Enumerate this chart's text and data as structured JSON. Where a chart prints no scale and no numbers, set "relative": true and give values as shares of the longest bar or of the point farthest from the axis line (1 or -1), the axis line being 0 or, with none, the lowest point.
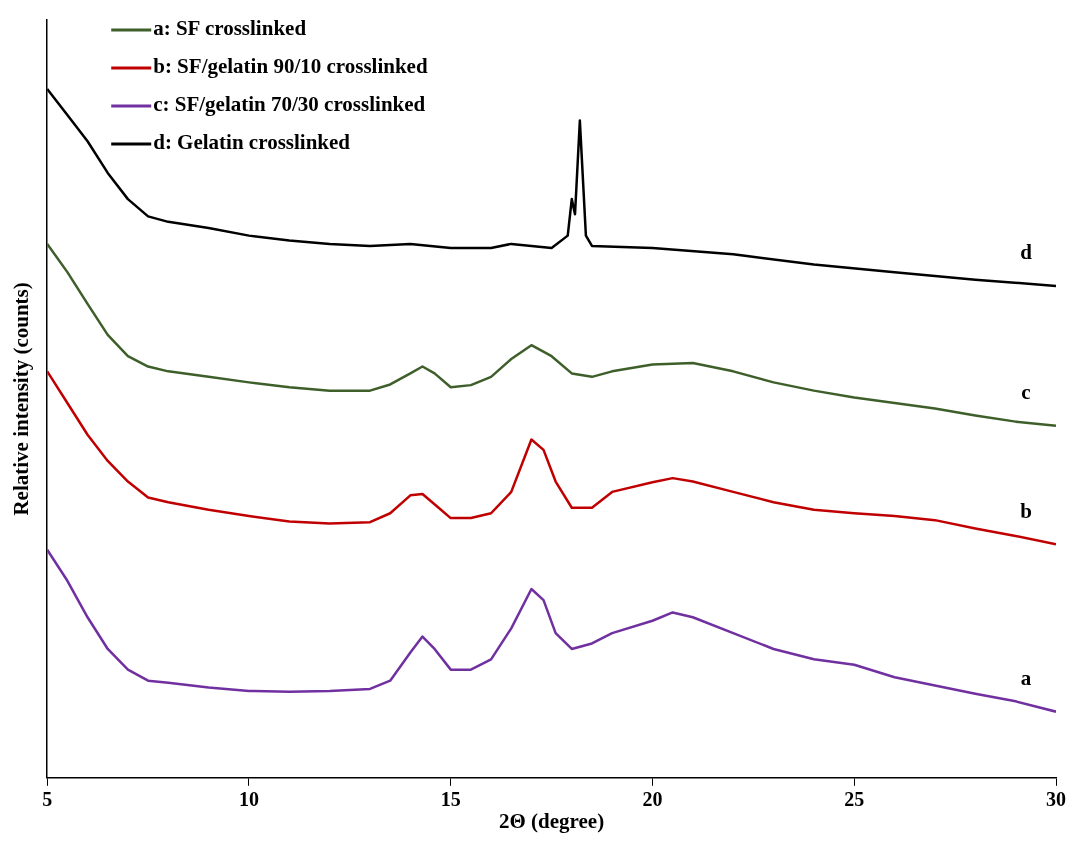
{
  "chart_data": {
    "type": "line",
    "relative": true,
    "xlabel": "2Θ (degree)",
    "ylabel": "Relative intensity (counts)",
    "xlim": [
      5,
      30
    ],
    "xticks": [
      5,
      10,
      15,
      20,
      25,
      30
    ],
    "grid": false,
    "legend": "top left",
    "marker": "none",
    "line_style": "solid",
    "series": [
      {
        "name": "a: SF crosslinked",
        "color": "#3e5f2a",
        "x": [
          5,
          5.5,
          6,
          6.5,
          7,
          7.5,
          8,
          9,
          10,
          11,
          12,
          13,
          13.5,
          14,
          14.3,
          14.6,
          15,
          15.5,
          16,
          16.5,
          17,
          17.5,
          18,
          18.5,
          19,
          20,
          21,
          22,
          23,
          24,
          25,
          26,
          27,
          28,
          29,
          30
        ],
        "values": [
          0.775,
          0.734,
          0.688,
          0.643,
          0.612,
          0.597,
          0.59,
          0.582,
          0.574,
          0.567,
          0.562,
          0.562,
          0.571,
          0.587,
          0.597,
          0.587,
          0.567,
          0.57,
          0.582,
          0.608,
          0.628,
          0.612,
          0.587,
          0.582,
          0.59,
          0.6,
          0.602,
          0.59,
          0.574,
          0.562,
          0.552,
          0.544,
          0.536,
          0.526,
          0.517,
          0.511
        ]
      },
      {
        "name": "b: SF/gelatin 90/10 crosslinked",
        "color": "#c00000",
        "x": [
          5,
          5.5,
          6,
          6.5,
          7,
          7.5,
          8,
          9,
          10,
          11,
          12,
          13,
          13.5,
          14,
          14.3,
          14.7,
          15,
          15.5,
          16,
          16.5,
          17,
          17.3,
          17.6,
          18,
          18.5,
          19,
          20,
          20.5,
          21,
          22,
          23,
          24,
          25,
          26,
          27,
          28,
          29,
          30
        ],
        "values": [
          0.59,
          0.544,
          0.498,
          0.46,
          0.43,
          0.407,
          0.4,
          0.389,
          0.38,
          0.372,
          0.369,
          0.371,
          0.384,
          0.41,
          0.412,
          0.392,
          0.377,
          0.377,
          0.384,
          0.415,
          0.491,
          0.476,
          0.43,
          0.392,
          0.392,
          0.415,
          0.429,
          0.435,
          0.43,
          0.415,
          0.4,
          0.389,
          0.384,
          0.38,
          0.374,
          0.362,
          0.351,
          0.339
        ]
      },
      {
        "name": "c: SF/gelatin 70/30 crosslinked",
        "color": "#7030a0",
        "x": [
          5,
          5.5,
          6,
          6.5,
          7,
          7.5,
          8,
          9,
          10,
          11,
          12,
          13,
          13.5,
          14,
          14.3,
          14.6,
          15,
          15.5,
          16,
          16.5,
          17,
          17.3,
          17.6,
          18,
          18.5,
          19,
          20,
          20.5,
          21,
          22,
          23,
          24,
          25,
          26,
          27,
          28,
          29,
          30
        ],
        "values": [
          0.331,
          0.286,
          0.233,
          0.187,
          0.157,
          0.141,
          0.138,
          0.131,
          0.126,
          0.125,
          0.126,
          0.129,
          0.141,
          0.182,
          0.205,
          0.187,
          0.157,
          0.157,
          0.172,
          0.217,
          0.274,
          0.258,
          0.21,
          0.187,
          0.195,
          0.21,
          0.228,
          0.24,
          0.233,
          0.21,
          0.187,
          0.172,
          0.164,
          0.146,
          0.134,
          0.122,
          0.111,
          0.096
        ]
      },
      {
        "name": "d: Gelatin crosslinked",
        "color": "#000000",
        "x": [
          5,
          5.5,
          6,
          6.5,
          7,
          7.5,
          8,
          9,
          10,
          11,
          12,
          13,
          14,
          15,
          16,
          16.5,
          17,
          17.5,
          17.9,
          18,
          18.08,
          18.2,
          18.35,
          18.5,
          20,
          22,
          24,
          26,
          28,
          30
        ],
        "values": [
          1.0,
          0.962,
          0.924,
          0.878,
          0.84,
          0.815,
          0.807,
          0.798,
          0.787,
          0.78,
          0.775,
          0.772,
          0.775,
          0.769,
          0.769,
          0.775,
          0.772,
          0.769,
          0.787,
          0.84,
          0.818,
          0.954,
          0.787,
          0.772,
          0.769,
          0.76,
          0.745,
          0.734,
          0.723,
          0.714
        ]
      }
    ],
    "annotations": [
      "d",
      "c",
      "b",
      "a"
    ]
  }
}
